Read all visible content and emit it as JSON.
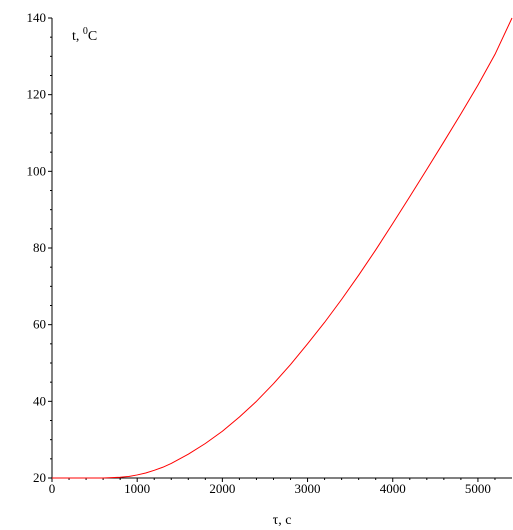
{
  "chart_data": {
    "type": "line",
    "title": "",
    "ylabel": "t, ",
    "ylabel_sup": "0",
    "ylabel_unit": "C",
    "xlabel": "τ, с",
    "xlim": [
      0,
      5400
    ],
    "ylim": [
      20,
      140
    ],
    "grid": false,
    "x_ticks": [
      0,
      1000,
      2000,
      3000,
      4000,
      5000
    ],
    "y_ticks": [
      20,
      40,
      60,
      80,
      100,
      120,
      140
    ],
    "colors": {
      "line": "#ff0000",
      "axis": "#000000"
    },
    "series": [
      {
        "x": [
          0,
          200,
          400,
          600,
          800,
          900,
          1000,
          1100,
          1200,
          1300,
          1400,
          1500,
          1600,
          1800,
          2000,
          2200,
          2400,
          2600,
          2800,
          3000,
          3200,
          3400,
          3600,
          3800,
          4000,
          4200,
          4400,
          4600,
          4800,
          5000,
          5200,
          5400
        ],
        "values": [
          20,
          20,
          20,
          20,
          20.2,
          20.4,
          20.8,
          21.3,
          22,
          22.8,
          23.8,
          25,
          26.2,
          29,
          32.2,
          35.9,
          40,
          44.6,
          49.6,
          55,
          60.6,
          66.6,
          72.9,
          79.5,
          86.4,
          93.4,
          100.5,
          107.7,
          115,
          122.5,
          130.5,
          140
        ]
      }
    ]
  }
}
